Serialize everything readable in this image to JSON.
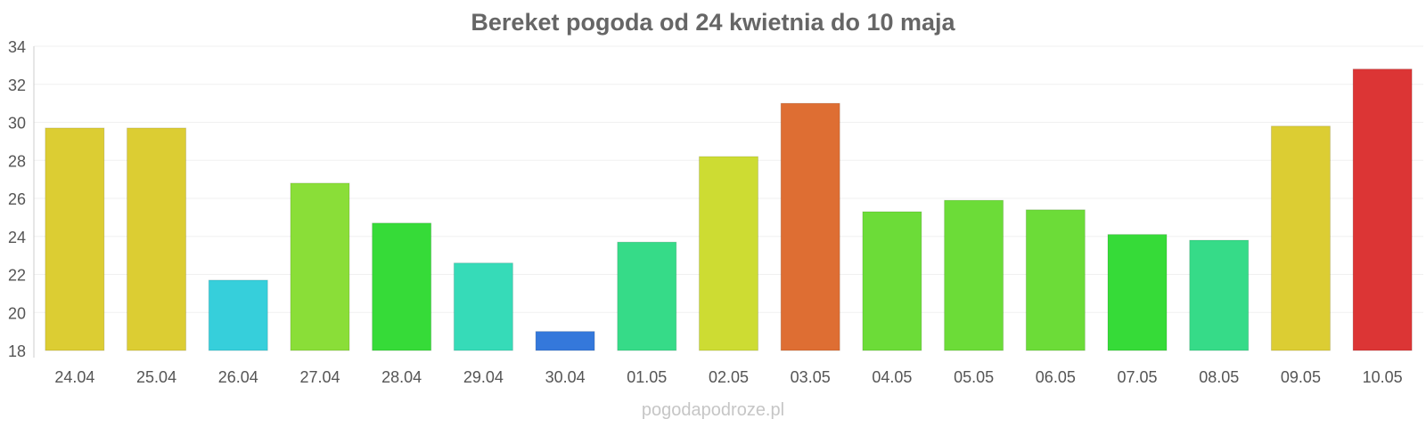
{
  "chart_data": {
    "type": "bar",
    "title": "Bereket pogoda od 24 kwietnia do 10 maja",
    "xlabel": "",
    "ylabel": "",
    "categories": [
      "24.04",
      "25.04",
      "26.04",
      "27.04",
      "28.04",
      "29.04",
      "30.04",
      "01.05",
      "02.05",
      "03.05",
      "04.05",
      "05.05",
      "06.05",
      "07.05",
      "08.05",
      "09.05",
      "10.05"
    ],
    "values": [
      29.7,
      29.7,
      21.7,
      26.8,
      24.7,
      22.6,
      19.0,
      23.7,
      28.2,
      31.0,
      25.3,
      25.9,
      25.4,
      24.1,
      23.8,
      29.8,
      32.8
    ],
    "colors": [
      "#dccd33",
      "#dccd33",
      "#36cfdb",
      "#8ade38",
      "#36db38",
      "#36dbb8",
      "#3478db",
      "#36db88",
      "#cddc33",
      "#de6e33",
      "#6cdc38",
      "#6cdc38",
      "#6cdc38",
      "#36db38",
      "#36db88",
      "#dccd33",
      "#dc3535"
    ],
    "yticks": [
      18,
      20,
      22,
      24,
      26,
      28,
      30,
      32,
      34
    ],
    "ylim": [
      18,
      34
    ],
    "grid": true,
    "legend": "none"
  },
  "watermark": "pogodapodroze.pl"
}
